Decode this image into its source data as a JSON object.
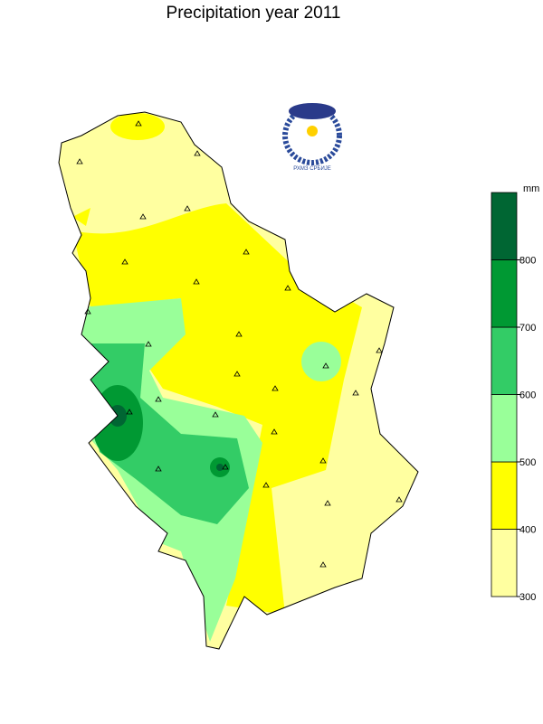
{
  "title": "Precipitation year 2011",
  "logo": {
    "text": "РХМЗ СРБИЈЕ"
  },
  "legend": {
    "unit": "mm",
    "ticks": [
      300,
      400,
      500,
      600,
      700,
      800
    ],
    "colors": [
      "#ffffa0",
      "#ffff00",
      "#99ff99",
      "#33cc66",
      "#009933",
      "#006633"
    ]
  }
}
